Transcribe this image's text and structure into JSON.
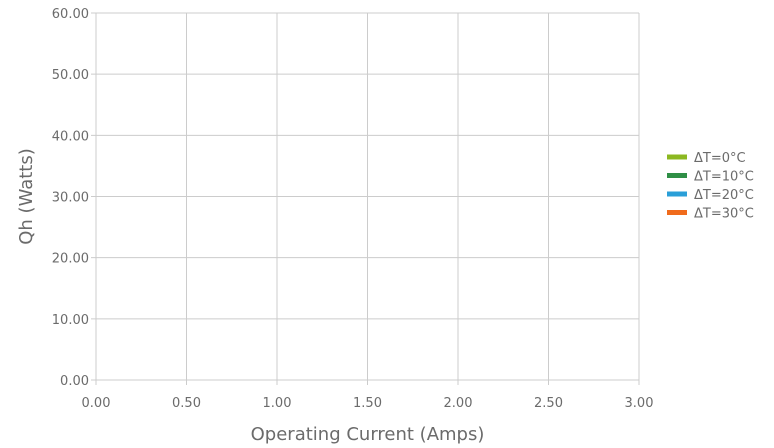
{
  "chart_data": {
    "type": "line",
    "xlabel": "Operating Current (Amps)",
    "ylabel": "Qh (Watts)",
    "xlim": [
      0,
      3
    ],
    "ylim": [
      0,
      60
    ],
    "x_ticks": [
      0,
      0.5,
      1,
      1.5,
      2,
      2.5,
      3
    ],
    "y_ticks": [
      0,
      10,
      20,
      30,
      40,
      50,
      60
    ],
    "x_tick_labels": [
      "0.00",
      "0.50",
      "1.00",
      "1.50",
      "2.00",
      "2.50",
      "3.00"
    ],
    "y_tick_labels": [
      "0.00",
      "10.00",
      "20.00",
      "30.00",
      "40.00",
      "50.00",
      "60.00"
    ],
    "grid": true,
    "legend_position": "right",
    "series": [
      {
        "name": "ΔT=0°C",
        "color": "#8cb821",
        "x": [],
        "y": []
      },
      {
        "name": "ΔT=10°C",
        "color": "#2f8f46",
        "x": [],
        "y": []
      },
      {
        "name": "ΔT=20°C",
        "color": "#2a9fd8",
        "x": [],
        "y": []
      },
      {
        "name": "ΔT=30°C",
        "color": "#f06b1c",
        "x": [],
        "y": []
      }
    ],
    "gridline_color": "#cccccc",
    "text_color": "#6b6b6b"
  }
}
